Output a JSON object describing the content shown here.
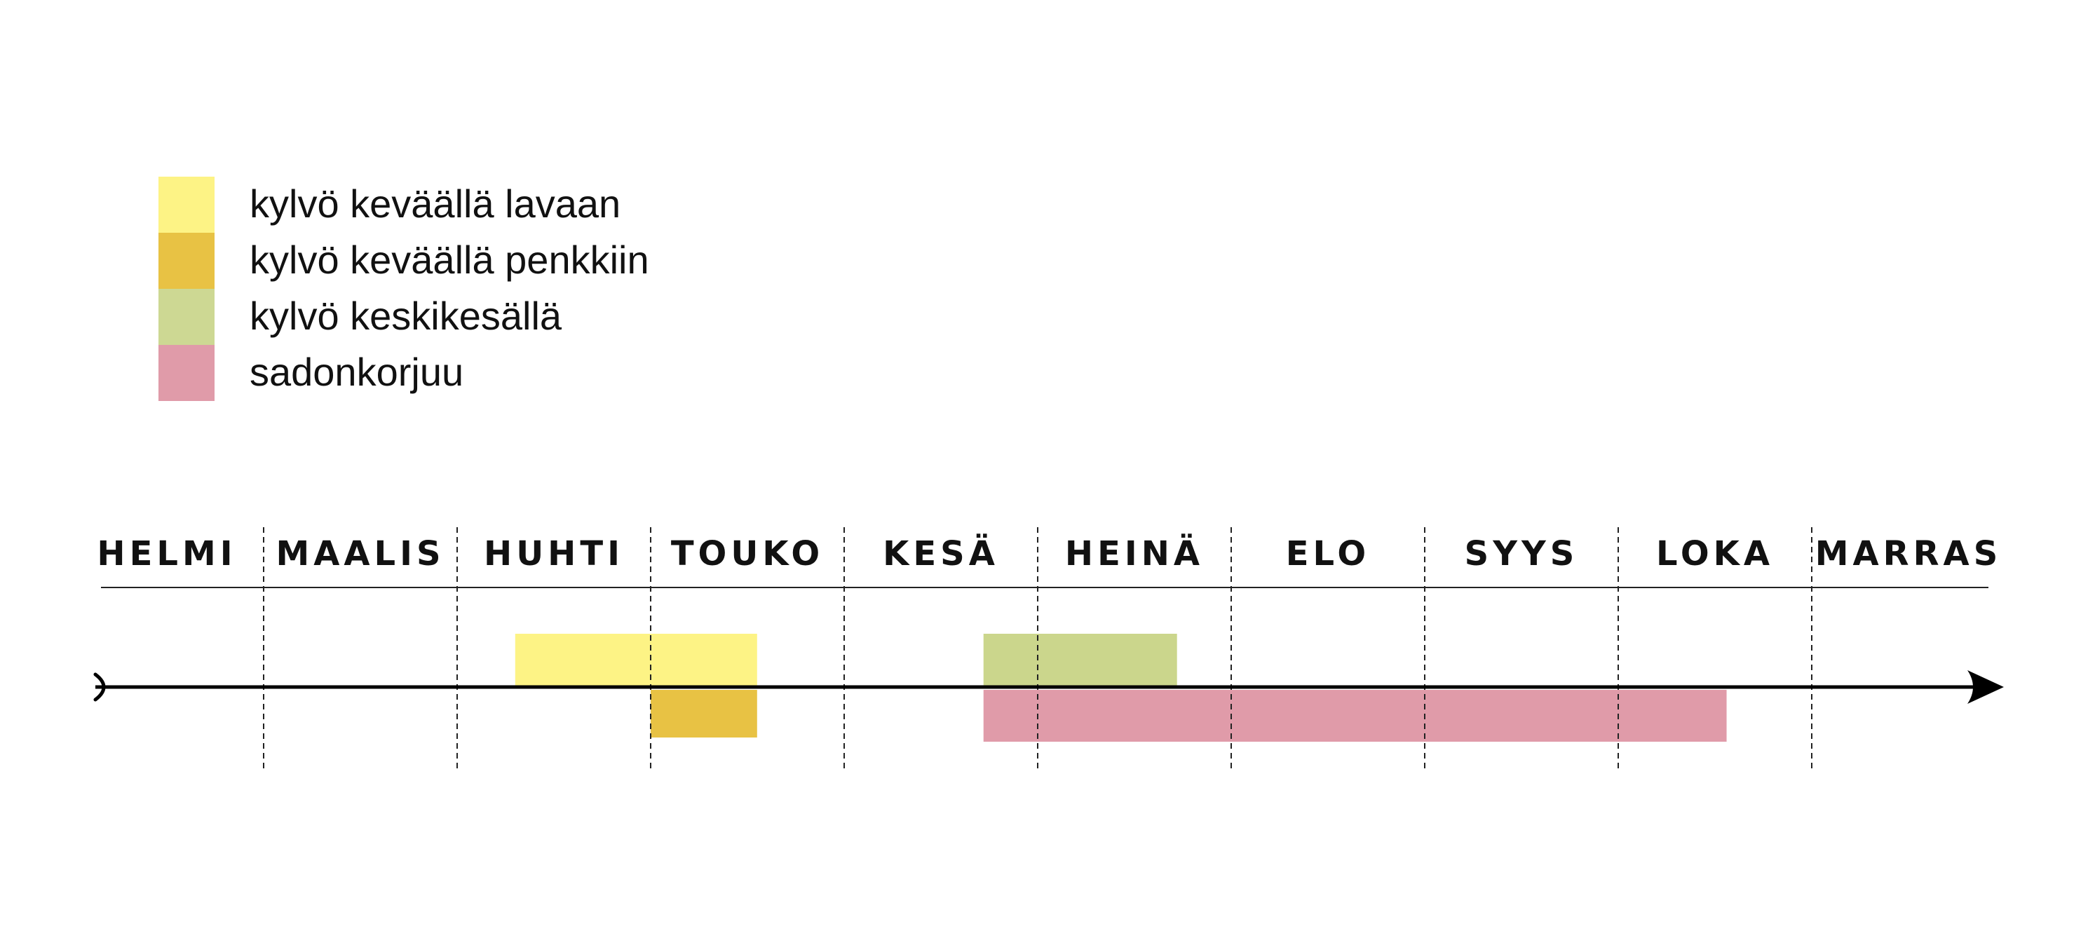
{
  "chart_data": {
    "type": "timeline",
    "title": "",
    "axis": {
      "categories": [
        "HELMI",
        "MAALIS",
        "HUHTI",
        "TOUKO",
        "KESÄ",
        "HEINÄ",
        "ELO",
        "SYYS",
        "LOKA",
        "MARRAS"
      ],
      "range_months": [
        0,
        10
      ],
      "month_gridlines": "dashed"
    },
    "legend": {
      "placement": "top-left",
      "items": [
        {
          "label": "kylvö keväällä lavaan",
          "color": "#fdf385"
        },
        {
          "label": "kylvö keväällä penkkiin",
          "color": "#e8c244"
        },
        {
          "label": "kylvö keskikesällä",
          "color": "#cdd893"
        },
        {
          "label": "sadonkorjuu",
          "color": "#e09ba9"
        }
      ]
    },
    "series": [
      {
        "legend_index": 0,
        "track": "above",
        "start": 2.3,
        "end": 3.55,
        "color": "#fdf385"
      },
      {
        "legend_index": 1,
        "track": "below",
        "start": 3.0,
        "end": 3.55,
        "color": "#e8c244"
      },
      {
        "legend_index": 2,
        "track": "above",
        "start": 4.72,
        "end": 5.72,
        "color": "#cbd68c"
      },
      {
        "legend_index": 3,
        "track": "below",
        "start": 4.72,
        "end": 8.56,
        "color": "#e09ba9"
      }
    ]
  }
}
